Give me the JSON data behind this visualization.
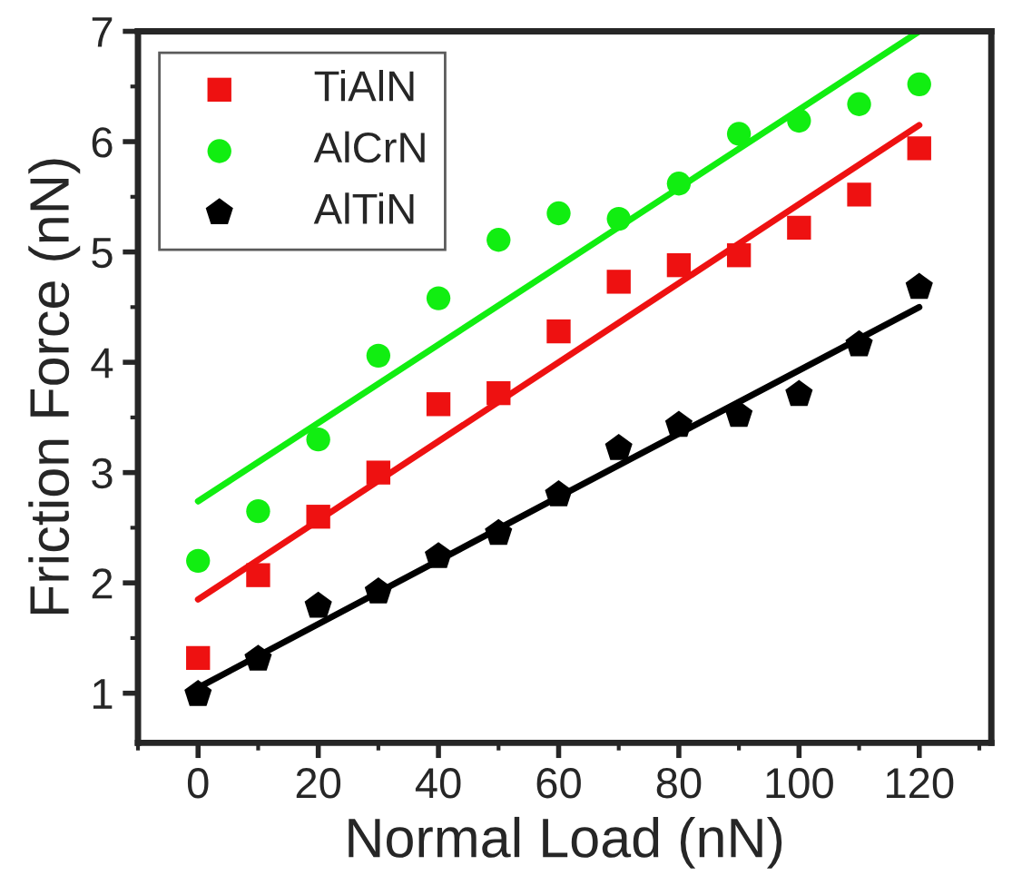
{
  "chart_data": {
    "type": "scatter",
    "xlabel": "Normal Load (nN)",
    "ylabel": "Friction Force (nN)",
    "x": [
      0,
      10,
      20,
      30,
      40,
      50,
      60,
      70,
      80,
      90,
      100,
      110,
      120
    ],
    "series": [
      {
        "name": "TiAlN",
        "color": "#ee1111",
        "marker": "square",
        "values": [
          1.32,
          2.07,
          2.6,
          3.0,
          3.62,
          3.72,
          4.28,
          4.73,
          4.88,
          4.97,
          5.22,
          5.52,
          5.94
        ]
      },
      {
        "name": "AlCrN",
        "color": "#11ee11",
        "marker": "circle",
        "values": [
          2.2,
          2.65,
          3.3,
          4.06,
          4.58,
          5.11,
          5.35,
          5.3,
          5.62,
          6.07,
          6.19,
          6.34,
          6.52
        ]
      },
      {
        "name": "AlTiN",
        "color": "#000000",
        "values": [
          0.99,
          1.31,
          1.79,
          1.92,
          2.24,
          2.45,
          2.8,
          3.22,
          3.43,
          3.52,
          3.71,
          4.16,
          4.68
        ]
      },
      {
        "type": "line",
        "color": "#ee1111",
        "x": [
          0,
          60,
          120
        ],
        "values": [
          1.85,
          4.0,
          6.15
        ]
      },
      {
        "type": "line",
        "color": "#11ee11",
        "x": [
          0,
          60,
          120
        ],
        "values": [
          2.74,
          4.87,
          7.0
        ]
      },
      {
        "type": "line",
        "color": "#000000",
        "x": [
          0,
          60,
          120
        ],
        "values": [
          1.05,
          2.78,
          4.5
        ]
      }
    ],
    "xlim": [
      -10,
      132
    ],
    "xticks": [
      0,
      20,
      40,
      60,
      80,
      100,
      120
    ],
    "ylim": [
      0.55,
      7
    ],
    "yticks": [
      1,
      2,
      3,
      4,
      5,
      6,
      7
    ],
    "grid": false,
    "legend": "top left"
  }
}
